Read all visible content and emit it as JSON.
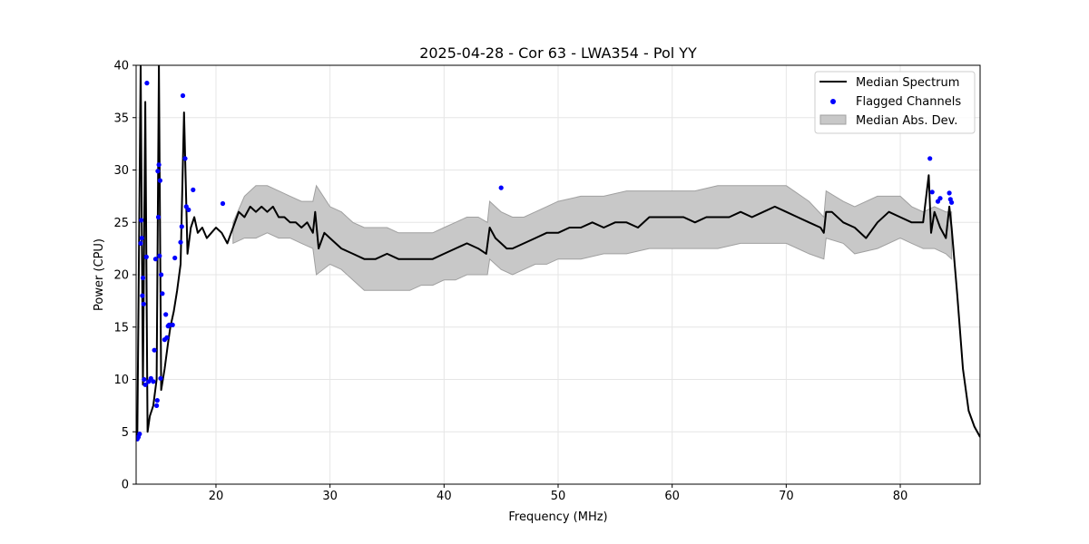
{
  "chart_data": {
    "type": "line",
    "title": "2025-04-28 - Cor 63 - LWA354 - Pol YY",
    "xlabel": "Frequency (MHz)",
    "ylabel": "Power (CPU)",
    "xlim": [
      13.0,
      87.0
    ],
    "ylim": [
      0,
      40
    ],
    "xticks": [
      "20",
      "30",
      "40",
      "50",
      "60",
      "70",
      "80"
    ],
    "yticks": [
      "0",
      "5",
      "10",
      "15",
      "20",
      "25",
      "30",
      "35",
      "40"
    ],
    "grid": true,
    "legend_position": "top-right",
    "legend": [
      "Median Spectrum",
      "Flagged Channels",
      "Median Abs. Dev."
    ],
    "colors": {
      "median": "#000000",
      "flagged": "#0000ff",
      "mad_fill": "#c8c8c8",
      "mad_edge": "#a0a0a0"
    },
    "median_spectrum": {
      "x": [
        13.1,
        13.4,
        13.6,
        13.8,
        14.0,
        14.2,
        14.5,
        14.8,
        15.0,
        15.2,
        15.5,
        15.8,
        16.0,
        16.3,
        16.6,
        16.9,
        17.2,
        17.5,
        17.8,
        18.1,
        18.4,
        18.8,
        19.2,
        19.6,
        20.0,
        20.5,
        21.0,
        21.5,
        22.0,
        22.5,
        23.0,
        23.5,
        24.0,
        24.5,
        25.0,
        25.5,
        26.0,
        26.5,
        27.0,
        27.5,
        28.0,
        28.5,
        28.7,
        29.0,
        29.5,
        30.0,
        31.0,
        32.0,
        33.0,
        34.0,
        35.0,
        36.0,
        37.0,
        38.0,
        39.0,
        40.0,
        41.0,
        42.0,
        43.0,
        43.7,
        44.0,
        44.5,
        45.0,
        45.5,
        46.0,
        47.0,
        48.0,
        49.0,
        50.0,
        51.0,
        52.0,
        53.0,
        54.0,
        55.0,
        56.0,
        57.0,
        58.0,
        59.0,
        60.0,
        61.0,
        62.0,
        63.0,
        64.0,
        65.0,
        66.0,
        67.0,
        68.0,
        69.0,
        70.0,
        71.0,
        72.0,
        73.0,
        73.3,
        73.5,
        74.0,
        75.0,
        76.0,
        77.0,
        78.0,
        79.0,
        80.0,
        81.0,
        82.0,
        82.5,
        82.7,
        83.0,
        83.5,
        84.0,
        84.3,
        84.5,
        85.0,
        85.5,
        86.0,
        86.5,
        87.0
      ],
      "y": [
        4.5,
        40.0,
        9.5,
        36.5,
        5.0,
        6.5,
        7.5,
        10.0,
        40.0,
        9.0,
        11.0,
        13.5,
        15.0,
        16.5,
        18.5,
        21.0,
        35.5,
        22.0,
        24.5,
        25.5,
        24.0,
        24.5,
        23.5,
        24.0,
        24.5,
        24.0,
        23.0,
        24.5,
        26.0,
        25.5,
        26.5,
        26.0,
        26.5,
        26.0,
        26.5,
        25.5,
        25.5,
        25.0,
        25.0,
        24.5,
        25.0,
        24.0,
        26.0,
        22.5,
        24.0,
        23.5,
        22.5,
        22.0,
        21.5,
        21.5,
        22.0,
        21.5,
        21.5,
        21.5,
        21.5,
        22.0,
        22.5,
        23.0,
        22.5,
        22.0,
        24.5,
        23.5,
        23.0,
        22.5,
        22.5,
        23.0,
        23.5,
        24.0,
        24.0,
        24.5,
        24.5,
        25.0,
        24.5,
        25.0,
        25.0,
        24.5,
        25.5,
        25.5,
        25.5,
        25.5,
        25.0,
        25.5,
        25.5,
        25.5,
        26.0,
        25.5,
        26.0,
        26.5,
        26.0,
        25.5,
        25.0,
        24.5,
        24.0,
        26.0,
        26.0,
        25.0,
        24.5,
        23.5,
        25.0,
        26.0,
        25.5,
        25.0,
        25.0,
        29.5,
        24.0,
        26.0,
        24.5,
        23.5,
        26.5,
        24.5,
        18.0,
        11.0,
        7.0,
        5.5,
        4.5
      ]
    },
    "mad_band": {
      "x": [
        21.5,
        22.5,
        23.5,
        24.5,
        25.5,
        26.5,
        27.5,
        28.5,
        28.8,
        30.0,
        31.0,
        32.0,
        33.0,
        34.0,
        35.0,
        36.0,
        37.0,
        38.0,
        39.0,
        40.0,
        41.0,
        42.0,
        43.0,
        43.8,
        44.0,
        45.0,
        46.0,
        47.0,
        48.0,
        49.0,
        50.0,
        52.0,
        54.0,
        56.0,
        58.0,
        60.0,
        62.0,
        64.0,
        66.0,
        68.0,
        70.0,
        72.0,
        73.3,
        73.5,
        75.0,
        76.0,
        78.0,
        80.0,
        81.0,
        82.0,
        83.0,
        84.0,
        84.5
      ],
      "upper": [
        25.0,
        27.5,
        28.5,
        28.5,
        28.0,
        27.5,
        27.0,
        27.0,
        28.5,
        26.5,
        26.0,
        25.0,
        24.5,
        24.5,
        24.5,
        24.0,
        24.0,
        24.0,
        24.0,
        24.5,
        25.0,
        25.5,
        25.5,
        25.0,
        27.0,
        26.0,
        25.5,
        25.5,
        26.0,
        26.5,
        27.0,
        27.5,
        27.5,
        28.0,
        28.0,
        28.0,
        28.0,
        28.5,
        28.5,
        28.5,
        28.5,
        27.0,
        25.5,
        28.0,
        27.0,
        26.5,
        27.5,
        27.5,
        26.5,
        26.0,
        26.5,
        26.0,
        26.0
      ],
      "lower": [
        23.0,
        23.5,
        23.5,
        24.0,
        23.5,
        23.5,
        23.0,
        22.5,
        20.0,
        21.0,
        20.5,
        19.5,
        18.5,
        18.5,
        18.5,
        18.5,
        18.5,
        19.0,
        19.0,
        19.5,
        19.5,
        20.0,
        20.0,
        20.0,
        21.5,
        20.5,
        20.0,
        20.5,
        21.0,
        21.0,
        21.5,
        21.5,
        22.0,
        22.0,
        22.5,
        22.5,
        22.5,
        22.5,
        23.0,
        23.0,
        23.0,
        22.0,
        21.5,
        23.5,
        23.0,
        22.0,
        22.5,
        23.5,
        23.0,
        22.5,
        22.5,
        22.0,
        21.5
      ]
    },
    "flagged_channels": {
      "x": [
        13.1,
        13.2,
        13.3,
        13.4,
        13.45,
        13.5,
        13.55,
        13.6,
        13.65,
        13.7,
        13.8,
        13.9,
        13.95,
        14.1,
        14.3,
        14.5,
        14.6,
        14.7,
        14.8,
        14.85,
        14.9,
        14.95,
        15.0,
        15.05,
        15.1,
        15.15,
        15.2,
        15.3,
        15.5,
        15.6,
        15.7,
        15.8,
        15.9,
        16.2,
        16.4,
        16.9,
        17.0,
        17.1,
        17.3,
        17.4,
        17.6,
        18.0,
        20.6,
        45.0,
        82.6,
        82.8,
        83.3,
        83.5,
        84.3,
        84.4,
        84.5
      ],
      "y": [
        4.3,
        4.5,
        4.8,
        23.0,
        25.2,
        23.5,
        18.0,
        19.7,
        17.2,
        10.0,
        9.5,
        21.7,
        38.3,
        9.8,
        10.1,
        9.8,
        12.8,
        21.5,
        7.5,
        8.0,
        29.9,
        25.5,
        30.5,
        21.8,
        29.0,
        10.1,
        20.0,
        18.2,
        13.8,
        16.2,
        14.0,
        15.1,
        15.2,
        15.2,
        21.6,
        23.1,
        24.6,
        37.1,
        31.1,
        26.5,
        26.2,
        28.1,
        26.8,
        28.3,
        31.1,
        27.9,
        27.0,
        27.3,
        27.8,
        27.2,
        26.9
      ]
    }
  }
}
